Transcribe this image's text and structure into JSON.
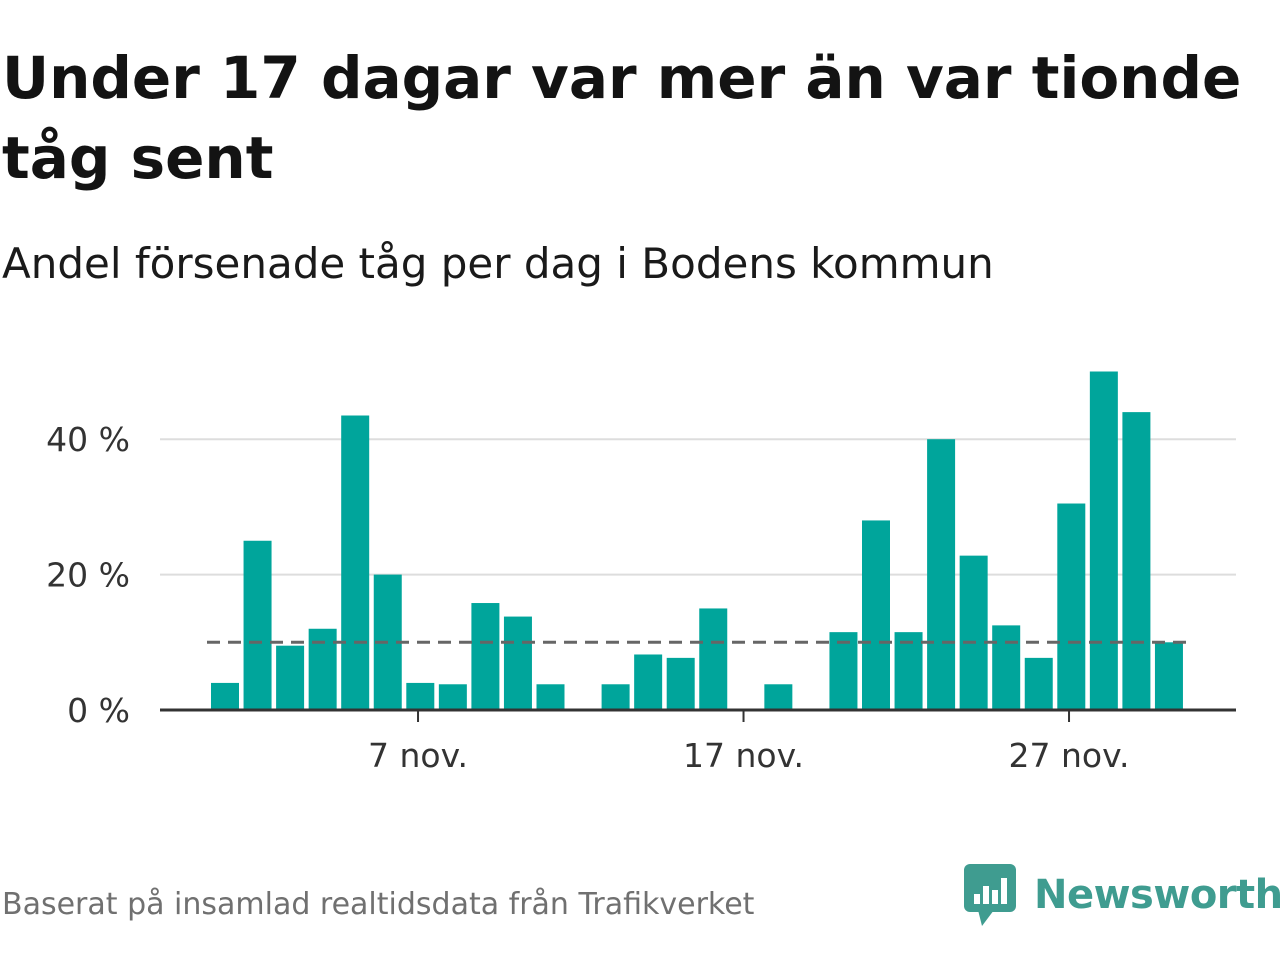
{
  "header": {
    "title": "Under 17 dagar var mer än var tionde tåg sent",
    "subtitle": "Andel försenade tåg per dag i Bodens kommun"
  },
  "footer": {
    "source": "Baserat på insamlad realtidsdata från Trafikverket",
    "brand_name": "Newsworthy",
    "brand_icon": "newsworthy-logo-icon"
  },
  "colors": {
    "bar": "#00a59b",
    "threshold": "#666666",
    "grid": "#dddddd",
    "baseline": "#333333",
    "brand": "#3f9c90"
  },
  "chart_data": {
    "type": "bar",
    "x_unit": "day of November",
    "x": [
      1,
      2,
      3,
      4,
      5,
      6,
      7,
      8,
      9,
      10,
      11,
      12,
      13,
      14,
      15,
      16,
      17,
      18,
      19,
      20,
      21,
      22,
      23,
      24,
      25,
      26,
      27,
      28,
      29,
      30
    ],
    "values": [
      4,
      25,
      9.5,
      12,
      43.5,
      20,
      4,
      3.8,
      15.8,
      13.8,
      3.8,
      0,
      3.8,
      8.2,
      7.7,
      15,
      0,
      3.8,
      0,
      11.5,
      28,
      11.5,
      40,
      22.8,
      12.5,
      7.7,
      30.5,
      50,
      44,
      10
    ],
    "threshold": 10,
    "threshold_style": "dashed",
    "ylim": [
      0,
      50
    ],
    "yticks": [
      {
        "value": 0,
        "label": "0 %"
      },
      {
        "value": 20,
        "label": "20 %"
      },
      {
        "value": 40,
        "label": "40 %"
      }
    ],
    "xticks": [
      {
        "value": 7,
        "label": "7 nov."
      },
      {
        "value": 17,
        "label": "17 nov."
      },
      {
        "value": 27,
        "label": "27 nov."
      }
    ],
    "grid": true
  }
}
